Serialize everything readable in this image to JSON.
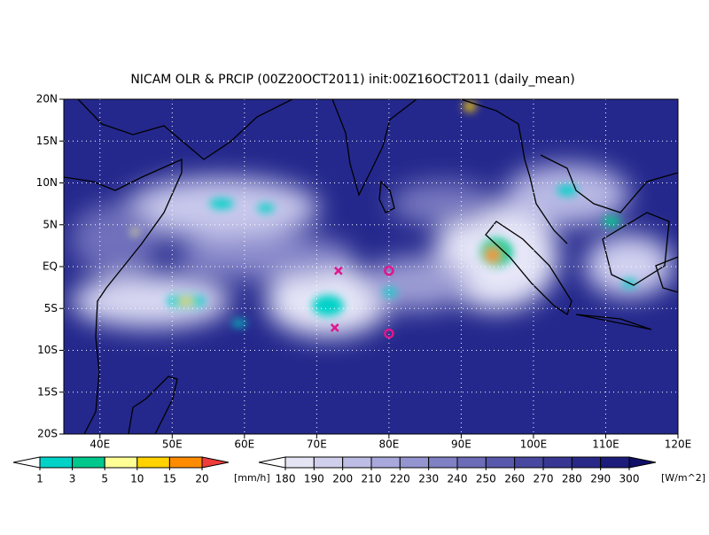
{
  "title": "NICAM OLR & PRCIP (00Z20OCT2011) init:00Z16OCT2011 (daily_mean)",
  "map": {
    "xlim": [
      35,
      120
    ],
    "ylim": [
      -20,
      20
    ],
    "xticks": [
      {
        "value": 40,
        "label": "40E"
      },
      {
        "value": 50,
        "label": "50E"
      },
      {
        "value": 60,
        "label": "60E"
      },
      {
        "value": 70,
        "label": "70E"
      },
      {
        "value": 80,
        "label": "80E"
      },
      {
        "value": 90,
        "label": "90E"
      },
      {
        "value": 100,
        "label": "100E"
      },
      {
        "value": 110,
        "label": "110E"
      },
      {
        "value": 120,
        "label": "120E"
      }
    ],
    "yticks": [
      {
        "value": -20,
        "label": "20S"
      },
      {
        "value": -15,
        "label": "15S"
      },
      {
        "value": -10,
        "label": "10S"
      },
      {
        "value": -5,
        "label": "5S"
      },
      {
        "value": 0,
        "label": "EQ"
      },
      {
        "value": 5,
        "label": "5N"
      },
      {
        "value": 10,
        "label": "10N"
      },
      {
        "value": 15,
        "label": "15N"
      },
      {
        "value": 20,
        "label": "20N"
      }
    ],
    "marker_color": "#e0168c",
    "markers": [
      {
        "symbol": "x",
        "lon": 73,
        "lat": -0.5
      },
      {
        "symbol": "x",
        "lon": 72.5,
        "lat": -7.3
      },
      {
        "symbol": "o",
        "lon": 80,
        "lat": -0.5
      },
      {
        "symbol": "o",
        "lon": 80,
        "lat": -8
      }
    ]
  },
  "precip_colorbar": {
    "unit": "[mm/h]",
    "levels": [
      1,
      3,
      5,
      10,
      15,
      20
    ],
    "colors": [
      "#ffffff",
      "#00d2c8",
      "#00c88c",
      "#ffff96",
      "#ffd200",
      "#ff8c00",
      "#f03c3c"
    ]
  },
  "olr_colorbar": {
    "unit": "[W/m^2]",
    "levels": [
      180,
      190,
      200,
      210,
      220,
      230,
      240,
      250,
      260,
      270,
      280,
      290,
      300
    ],
    "colors": [
      "#ffffff",
      "#e4e4f4",
      "#d0d0ec",
      "#bcbce4",
      "#a8a8dc",
      "#9494d0",
      "#8080c4",
      "#6c6cb8",
      "#5858ac",
      "#4848a0",
      "#383894",
      "#282888",
      "#1c1c7c",
      "#101068"
    ]
  }
}
